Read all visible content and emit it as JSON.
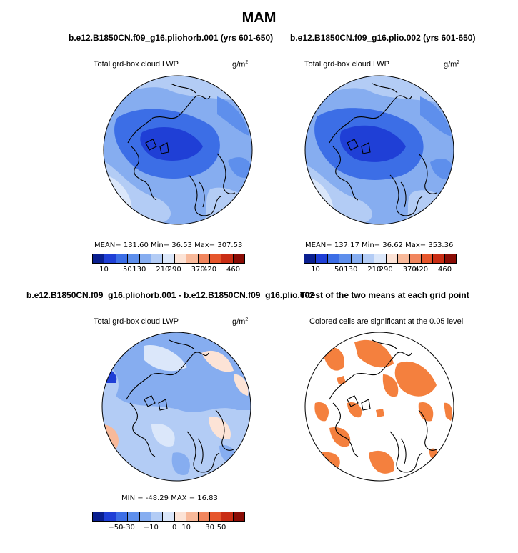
{
  "page_title": "MAM",
  "units": "g/m",
  "units_sup": "2",
  "panels": [
    {
      "title": "b.e12.B1850CN.f09_g16.pliohorb.001 (yrs 601-650)",
      "subtitle": "Total grd-box cloud LWP",
      "stats": "MEAN= 131.60   Min=  36.53   Max= 307.53"
    },
    {
      "title": "b.e12.B1850CN.f09_g16.plio.002 (yrs 601-650)",
      "subtitle": "Total grd-box cloud LWP",
      "stats": "MEAN= 137.17   Min=  36.62   Max= 353.36"
    },
    {
      "title": "b.e12.B1850CN.f09_g16.pliohorb.001 - b.e12.B1850CN.f09_g16.plio.002",
      "subtitle": "Total grd-box cloud LWP",
      "stats": "MIN = -48.29  MAX =  16.83"
    },
    {
      "title": "T-test of the two means at each grid point",
      "subtitle": "Colored cells are significant at the 0.05 level",
      "stats": ""
    }
  ],
  "colorbar_abs": {
    "colors": [
      "#0a1f8f",
      "#1f3fd6",
      "#3c6ee6",
      "#5e8fec",
      "#86adf0",
      "#b3ccf5",
      "#dbe7fa",
      "#fce3d6",
      "#f8b99a",
      "#f1865e",
      "#e6562c",
      "#c92d14",
      "#8a0c05"
    ],
    "ticks": [
      "10",
      "50",
      "130",
      "210",
      "290",
      "370",
      "420",
      "460"
    ]
  },
  "colorbar_diff": {
    "colors": [
      "#0a1f8f",
      "#1f3fd6",
      "#3c6ee6",
      "#5e8fec",
      "#86adf0",
      "#b3ccf5",
      "#dbe7fa",
      "#fce3d6",
      "#f8b99a",
      "#f1865e",
      "#e6562c",
      "#c92d14",
      "#8a0c05"
    ],
    "ticks": [
      "−50",
      "−30",
      "−10",
      "0",
      "10",
      "30",
      "50"
    ]
  },
  "colors": {
    "significant": "#f4803e",
    "coast": "#000000"
  }
}
